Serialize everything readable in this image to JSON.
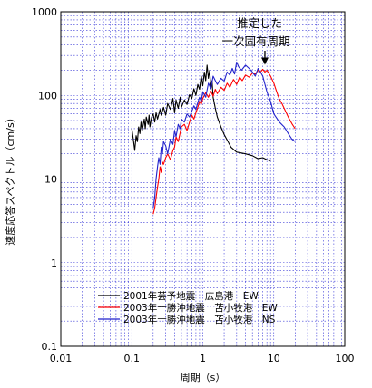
{
  "chart_data": {
    "type": "line",
    "title": "",
    "xlabel": "周期（s）",
    "ylabel": "速度応答スペクトル（cm/s）",
    "xscale": "log",
    "yscale": "log",
    "xlim": [
      0.01,
      100
    ],
    "ylim": [
      0.1,
      1000
    ],
    "x_ticks": [
      "0.01",
      "0.1",
      "1",
      "10",
      "100"
    ],
    "y_ticks": [
      "0.1",
      "1",
      "10",
      "100",
      "1000"
    ],
    "grid": true,
    "legend_position": "lower-center",
    "annotation": {
      "lines": [
        "推定した",
        "一次固有周期"
      ],
      "arrow_to": [
        7.5,
        200
      ]
    },
    "series": [
      {
        "name": "2001年芸予地震　広島港　EW",
        "color": "#000000",
        "points": [
          [
            0.1,
            40
          ],
          [
            0.105,
            30
          ],
          [
            0.11,
            22
          ],
          [
            0.115,
            33
          ],
          [
            0.12,
            28
          ],
          [
            0.125,
            42
          ],
          [
            0.13,
            35
          ],
          [
            0.135,
            48
          ],
          [
            0.14,
            38
          ],
          [
            0.15,
            52
          ],
          [
            0.155,
            40
          ],
          [
            0.16,
            55
          ],
          [
            0.17,
            45
          ],
          [
            0.175,
            58
          ],
          [
            0.18,
            42
          ],
          [
            0.19,
            55
          ],
          [
            0.2,
            60
          ],
          [
            0.21,
            48
          ],
          [
            0.22,
            62
          ],
          [
            0.23,
            52
          ],
          [
            0.25,
            68
          ],
          [
            0.26,
            58
          ],
          [
            0.28,
            72
          ],
          [
            0.3,
            58
          ],
          [
            0.32,
            80
          ],
          [
            0.35,
            68
          ],
          [
            0.38,
            92
          ],
          [
            0.4,
            62
          ],
          [
            0.42,
            88
          ],
          [
            0.45,
            70
          ],
          [
            0.48,
            95
          ],
          [
            0.5,
            72
          ],
          [
            0.55,
            88
          ],
          [
            0.6,
            78
          ],
          [
            0.65,
            102
          ],
          [
            0.7,
            92
          ],
          [
            0.75,
            120
          ],
          [
            0.8,
            100
          ],
          [
            0.85,
            135
          ],
          [
            0.9,
            118
          ],
          [
            0.95,
            170
          ],
          [
            1.0,
            130
          ],
          [
            1.05,
            190
          ],
          [
            1.1,
            150
          ],
          [
            1.15,
            230
          ],
          [
            1.2,
            160
          ],
          [
            1.25,
            200
          ],
          [
            1.3,
            120
          ],
          [
            1.35,
            150
          ],
          [
            1.4,
            95
          ],
          [
            1.5,
            70
          ],
          [
            1.6,
            55
          ],
          [
            1.8,
            42
          ],
          [
            2.0,
            34
          ],
          [
            2.5,
            24
          ],
          [
            3.0,
            21
          ],
          [
            4.0,
            20
          ],
          [
            5.0,
            19
          ],
          [
            6.0,
            17.5
          ],
          [
            7.0,
            18
          ],
          [
            8.0,
            17
          ],
          [
            9.0,
            16.5
          ]
        ]
      },
      {
        "name": "2003年十勝沖地震　苫小牧港　EW",
        "color": "#ff0000",
        "points": [
          [
            0.2,
            3.8
          ],
          [
            0.21,
            4.5
          ],
          [
            0.22,
            6
          ],
          [
            0.23,
            8
          ],
          [
            0.24,
            10
          ],
          [
            0.25,
            14
          ],
          [
            0.26,
            12
          ],
          [
            0.27,
            16
          ],
          [
            0.28,
            15
          ],
          [
            0.3,
            18
          ],
          [
            0.32,
            20
          ],
          [
            0.35,
            17
          ],
          [
            0.38,
            22
          ],
          [
            0.4,
            24
          ],
          [
            0.42,
            32
          ],
          [
            0.45,
            28
          ],
          [
            0.48,
            36
          ],
          [
            0.5,
            42
          ],
          [
            0.55,
            45
          ],
          [
            0.6,
            38
          ],
          [
            0.65,
            48
          ],
          [
            0.7,
            58
          ],
          [
            0.75,
            52
          ],
          [
            0.8,
            62
          ],
          [
            0.85,
            72
          ],
          [
            0.9,
            85
          ],
          [
            0.95,
            78
          ],
          [
            1.0,
            92
          ],
          [
            1.1,
            108
          ],
          [
            1.2,
            95
          ],
          [
            1.3,
            112
          ],
          [
            1.4,
            98
          ],
          [
            1.5,
            118
          ],
          [
            1.6,
            105
          ],
          [
            1.8,
            125
          ],
          [
            2.0,
            115
          ],
          [
            2.2,
            140
          ],
          [
            2.4,
            125
          ],
          [
            2.7,
            155
          ],
          [
            3.0,
            135
          ],
          [
            3.3,
            165
          ],
          [
            3.6,
            150
          ],
          [
            4.0,
            175
          ],
          [
            4.5,
            165
          ],
          [
            5.0,
            185
          ],
          [
            5.5,
            180
          ],
          [
            6.0,
            200
          ],
          [
            6.5,
            190
          ],
          [
            7.0,
            205
          ],
          [
            7.5,
            190
          ],
          [
            8.0,
            200
          ],
          [
            9.0,
            170
          ],
          [
            10.0,
            140
          ],
          [
            11.0,
            110
          ],
          [
            12.0,
            90
          ],
          [
            13.0,
            80
          ],
          [
            14.0,
            70
          ],
          [
            16.0,
            55
          ],
          [
            18.0,
            46
          ],
          [
            20.0,
            40
          ]
        ]
      },
      {
        "name": "2003年十勝沖地震　苫小牧港　NS",
        "color": "#2222cc",
        "points": [
          [
            0.2,
            4.5
          ],
          [
            0.21,
            6
          ],
          [
            0.22,
            10
          ],
          [
            0.23,
            14
          ],
          [
            0.24,
            18
          ],
          [
            0.25,
            15
          ],
          [
            0.26,
            24
          ],
          [
            0.27,
            20
          ],
          [
            0.28,
            28
          ],
          [
            0.3,
            25
          ],
          [
            0.32,
            20
          ],
          [
            0.35,
            30
          ],
          [
            0.38,
            26
          ],
          [
            0.4,
            38
          ],
          [
            0.42,
            32
          ],
          [
            0.45,
            45
          ],
          [
            0.48,
            40
          ],
          [
            0.5,
            52
          ],
          [
            0.55,
            48
          ],
          [
            0.6,
            60
          ],
          [
            0.65,
            55
          ],
          [
            0.7,
            65
          ],
          [
            0.75,
            75
          ],
          [
            0.8,
            68
          ],
          [
            0.85,
            82
          ],
          [
            0.9,
            95
          ],
          [
            0.95,
            85
          ],
          [
            1.0,
            110
          ],
          [
            1.1,
            95
          ],
          [
            1.2,
            140
          ],
          [
            1.3,
            120
          ],
          [
            1.4,
            170
          ],
          [
            1.5,
            150
          ],
          [
            1.6,
            135
          ],
          [
            1.8,
            160
          ],
          [
            2.0,
            148
          ],
          [
            2.2,
            190
          ],
          [
            2.4,
            175
          ],
          [
            2.6,
            210
          ],
          [
            2.8,
            180
          ],
          [
            3.0,
            250
          ],
          [
            3.2,
            220
          ],
          [
            3.5,
            200
          ],
          [
            4.0,
            230
          ],
          [
            4.5,
            210
          ],
          [
            5.0,
            190
          ],
          [
            5.5,
            170
          ],
          [
            6.0,
            210
          ],
          [
            6.5,
            190
          ],
          [
            7.0,
            170
          ],
          [
            8.0,
            110
          ],
          [
            9.0,
            85
          ],
          [
            10.0,
            60
          ],
          [
            12.0,
            48
          ],
          [
            14.0,
            42
          ],
          [
            16.0,
            35
          ],
          [
            18.0,
            30
          ],
          [
            20.0,
            28
          ]
        ]
      }
    ]
  }
}
